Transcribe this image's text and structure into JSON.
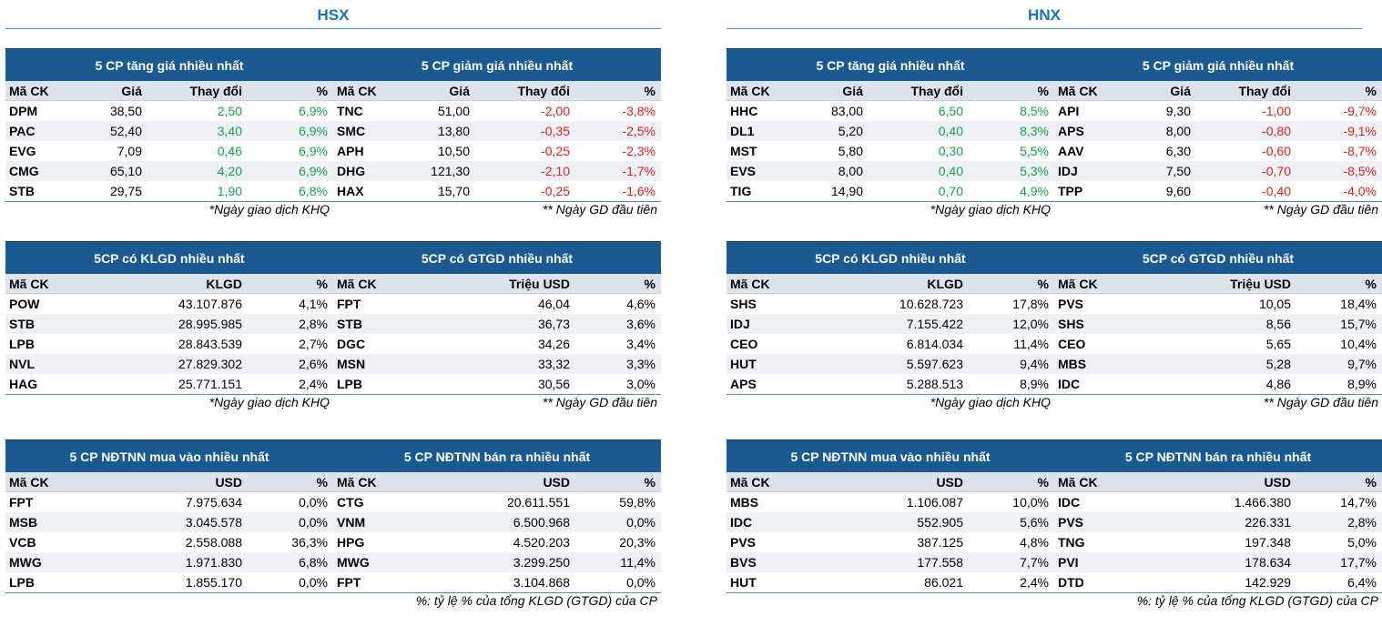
{
  "exchanges": {
    "hsx": "HSX",
    "hnx": "HNX"
  },
  "notes": {
    "khq": "*Ngày giao dịch KHQ",
    "first": "** Ngày GD đầu tiên",
    "pct": "%: tỷ lệ % của tổng KLGD (GTGD) của CP"
  },
  "hsx": {
    "gainers": {
      "title": "5 CP tăng giá nhiều nhất",
      "headers": [
        "Mã CK",
        "Giá",
        "Thay đổi",
        "%"
      ],
      "rows": [
        [
          "DPM",
          "38,50",
          "2,50",
          "6,9%"
        ],
        [
          "PAC",
          "52,40",
          "3,40",
          "6,9%"
        ],
        [
          "EVG",
          "7,09",
          "0,46",
          "6,9%"
        ],
        [
          "CMG",
          "65,10",
          "4,20",
          "6,9%"
        ],
        [
          "STB",
          "29,75",
          "1,90",
          "6,8%"
        ]
      ]
    },
    "losers": {
      "title": "5 CP giảm giá nhiều nhất",
      "headers": [
        "Mã CK",
        "Giá",
        "Thay đổi",
        "%"
      ],
      "rows": [
        [
          "TNC",
          "51,00",
          "-2,00",
          "-3,8%"
        ],
        [
          "SMC",
          "13,80",
          "-0,35",
          "-2,5%"
        ],
        [
          "APH",
          "10,50",
          "-0,25",
          "-2,3%"
        ],
        [
          "DHG",
          "121,30",
          "-2,10",
          "-1,7%"
        ],
        [
          "HAX",
          "15,70",
          "-0,25",
          "-1,6%"
        ]
      ]
    },
    "volume": {
      "title": "5CP có KLGD nhiều nhất",
      "headers": [
        "Mã CK",
        "KLGD",
        "%"
      ],
      "rows": [
        [
          "POW",
          "43.107.876",
          "4,1%"
        ],
        [
          "STB",
          "28.995.985",
          "2,8%"
        ],
        [
          "LPB",
          "28.843.539",
          "2,7%"
        ],
        [
          "NVL",
          "27.829.302",
          "2,6%"
        ],
        [
          "HAG",
          "25.771.151",
          "2,4%"
        ]
      ]
    },
    "value": {
      "title": "5CP có GTGD nhiều nhất",
      "headers": [
        "Mã CK",
        "Triệu USD",
        "%"
      ],
      "rows": [
        [
          "FPT",
          "46,04",
          "4,6%"
        ],
        [
          "STB",
          "36,73",
          "3,6%"
        ],
        [
          "DGC",
          "34,26",
          "3,4%"
        ],
        [
          "MSN",
          "33,32",
          "3,3%"
        ],
        [
          "LPB",
          "30,56",
          "3,0%"
        ]
      ]
    },
    "foreign_buy": {
      "title": "5 CP NĐTNN mua vào nhiều nhất",
      "headers": [
        "Mã CK",
        "USD",
        "%"
      ],
      "rows": [
        [
          "FPT",
          "7.975.634",
          "0,0%"
        ],
        [
          "MSB",
          "3.045.578",
          "0,0%"
        ],
        [
          "VCB",
          "2.558.088",
          "36,3%"
        ],
        [
          "MWG",
          "1.971.830",
          "6,8%"
        ],
        [
          "LPB",
          "1.855.170",
          "0,0%"
        ]
      ]
    },
    "foreign_sell": {
      "title": "5 CP NĐTNN bán ra nhiều nhất",
      "headers": [
        "Mã CK",
        "USD",
        "%"
      ],
      "rows": [
        [
          "CTG",
          "20.611.551",
          "59,8%"
        ],
        [
          "VNM",
          "6.500.968",
          "0,0%"
        ],
        [
          "HPG",
          "4.520.203",
          "20,3%"
        ],
        [
          "MWG",
          "3.299.250",
          "11,4%"
        ],
        [
          "FPT",
          "3.104.868",
          "0,0%"
        ]
      ]
    }
  },
  "hnx": {
    "gainers": {
      "title": "5 CP tăng giá nhiều nhất",
      "headers": [
        "Mã CK",
        "Giá",
        "Thay đổi",
        "%"
      ],
      "rows": [
        [
          "HHC",
          "83,00",
          "6,50",
          "8,5%"
        ],
        [
          "DL1",
          "5,20",
          "0,40",
          "8,3%"
        ],
        [
          "MST",
          "5,80",
          "0,30",
          "5,5%"
        ],
        [
          "EVS",
          "8,00",
          "0,40",
          "5,3%"
        ],
        [
          "TIG",
          "14,90",
          "0,70",
          "4,9%"
        ]
      ]
    },
    "losers": {
      "title": "5 CP giảm giá nhiều nhất",
      "headers": [
        "Mã CK",
        "Giá",
        "Thay đổi",
        "%"
      ],
      "rows": [
        [
          "API",
          "9,30",
          "-1,00",
          "-9,7%"
        ],
        [
          "APS",
          "8,00",
          "-0,80",
          "-9,1%"
        ],
        [
          "AAV",
          "6,30",
          "-0,60",
          "-8,7%"
        ],
        [
          "IDJ",
          "7,50",
          "-0,70",
          "-8,5%"
        ],
        [
          "TPP",
          "9,60",
          "-0,40",
          "-4,0%"
        ]
      ]
    },
    "volume": {
      "title": "5CP có KLGD nhiều nhất",
      "headers": [
        "Mã CK",
        "KLGD",
        "%"
      ],
      "rows": [
        [
          "SHS",
          "10.628.723",
          "17,8%"
        ],
        [
          "IDJ",
          "7.155.422",
          "12,0%"
        ],
        [
          "CEO",
          "6.814.034",
          "11,4%"
        ],
        [
          "HUT",
          "5.597.623",
          "9,4%"
        ],
        [
          "APS",
          "5.288.513",
          "8,9%"
        ]
      ]
    },
    "value": {
      "title": "5CP có GTGD nhiều nhất",
      "headers": [
        "Mã CK",
        "Triệu USD",
        "%"
      ],
      "rows": [
        [
          "PVS",
          "10,05",
          "18,4%"
        ],
        [
          "SHS",
          "8,56",
          "15,7%"
        ],
        [
          "CEO",
          "5,65",
          "10,4%"
        ],
        [
          "MBS",
          "5,28",
          "9,7%"
        ],
        [
          "IDC",
          "4,86",
          "8,9%"
        ]
      ]
    },
    "foreign_buy": {
      "title": "5 CP NĐTNN mua vào nhiều nhất",
      "headers": [
        "Mã CK",
        "USD",
        "%"
      ],
      "rows": [
        [
          "MBS",
          "1.106.087",
          "10,0%"
        ],
        [
          "IDC",
          "552.905",
          "5,6%"
        ],
        [
          "PVS",
          "387.125",
          "4,8%"
        ],
        [
          "BVS",
          "177.558",
          "7,7%"
        ],
        [
          "HUT",
          "86.021",
          "2,4%"
        ]
      ]
    },
    "foreign_sell": {
      "title": "5 CP NĐTNN bán ra nhiều nhất",
      "headers": [
        "Mã CK",
        "USD",
        "%"
      ],
      "rows": [
        [
          "IDC",
          "1.466.380",
          "14,7%"
        ],
        [
          "PVS",
          "226.331",
          "2,8%"
        ],
        [
          "TNG",
          "197.348",
          "5,0%"
        ],
        [
          "PVI",
          "178.634",
          "17,7%"
        ],
        [
          "DTD",
          "142.929",
          "6,4%"
        ]
      ]
    }
  }
}
